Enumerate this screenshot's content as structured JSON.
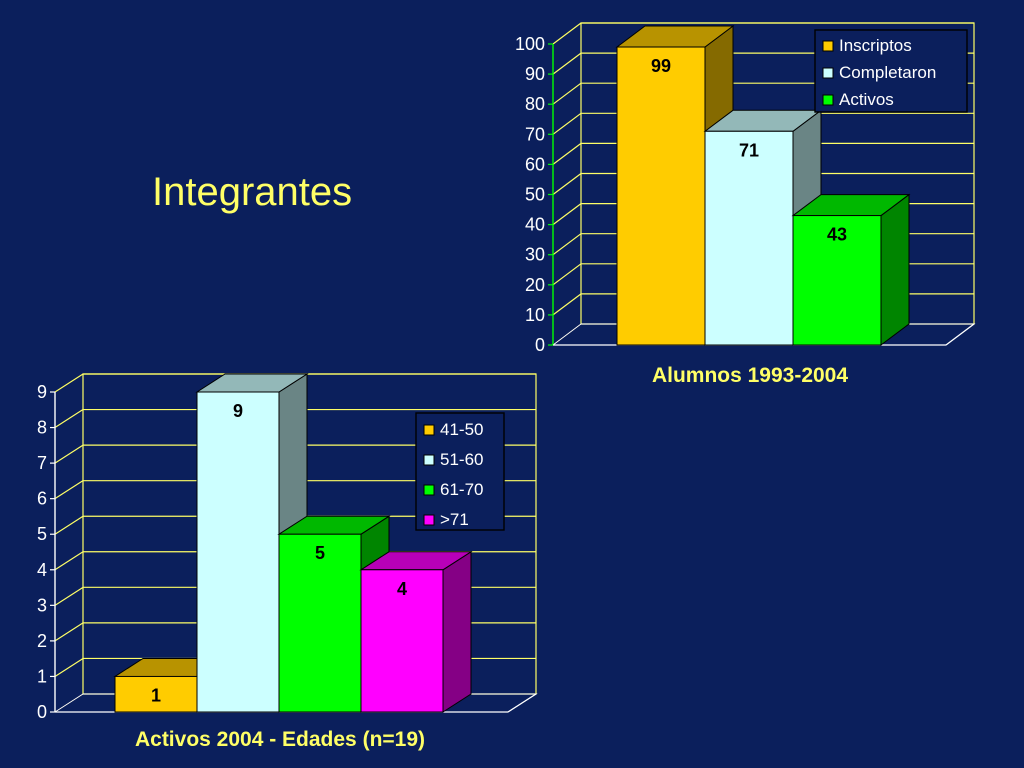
{
  "slide": {
    "title": "Integrantes"
  },
  "chart_data": [
    {
      "type": "bar",
      "xlabel": "Alumnos 1993-2004",
      "categories": [
        ""
      ],
      "series": [
        {
          "name": "Inscriptos",
          "values": [
            99
          ],
          "color": "#ffcc00"
        },
        {
          "name": "Completaron",
          "values": [
            71
          ],
          "color": "#ccffff"
        },
        {
          "name": "Activos",
          "values": [
            43
          ],
          "color": "#00ff00"
        }
      ],
      "ylim": [
        0,
        100
      ],
      "yticks": [
        "0",
        "10",
        "20",
        "30",
        "40",
        "50",
        "60",
        "70",
        "80",
        "90",
        "100"
      ],
      "grid": true,
      "legend": "top-right"
    },
    {
      "type": "bar",
      "xlabel": "Activos 2004 - Edades (n=19)",
      "categories": [
        ""
      ],
      "series": [
        {
          "name": "41-50",
          "values": [
            1
          ],
          "color": "#ffcc00"
        },
        {
          "name": "51-60",
          "values": [
            9
          ],
          "color": "#ccffff"
        },
        {
          "name": "61-70",
          "values": [
            5
          ],
          "color": "#00ff00"
        },
        {
          "name": ">71",
          "values": [
            4
          ],
          "color": "#ff00ff"
        }
      ],
      "ylim": [
        0,
        9
      ],
      "yticks": [
        "0",
        "1",
        "2",
        "3",
        "4",
        "5",
        "6",
        "7",
        "8",
        "9"
      ],
      "grid": true,
      "legend": "right"
    }
  ]
}
